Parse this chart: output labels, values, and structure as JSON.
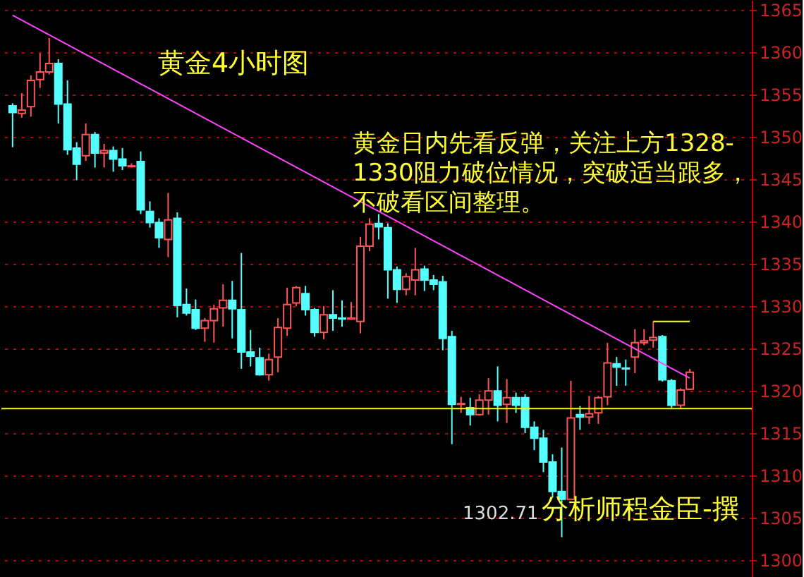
{
  "chart_data": {
    "type": "candlestick",
    "categories": [
      null,
      null,
      null,
      null,
      null,
      null,
      null,
      null,
      null,
      null,
      null,
      null,
      null,
      null,
      null,
      null,
      null,
      null,
      null,
      null,
      null,
      null,
      null,
      null,
      null,
      null,
      null,
      null,
      null,
      null,
      null,
      null,
      null,
      null,
      null,
      null,
      null,
      null,
      null,
      null,
      null,
      null,
      null,
      null,
      null,
      null,
      null,
      null,
      null,
      null,
      null,
      null,
      null,
      null,
      null,
      null,
      null,
      null,
      null,
      null,
      null,
      null,
      null,
      null,
      null,
      null,
      null,
      null,
      null,
      null,
      null,
      null,
      null,
      null,
      null
    ],
    "ohlc": [
      [
        1353.7,
        1354.0,
        1348.8,
        1352.9
      ],
      [
        1352.8,
        1355.2,
        1352.3,
        1353.2
      ],
      [
        1353.6,
        1357.3,
        1352.4,
        1356.7
      ],
      [
        1356.8,
        1359.9,
        1355.8,
        1357.7
      ],
      [
        1357.7,
        1361.7,
        1357.4,
        1358.7
      ],
      [
        1358.7,
        1359.2,
        1351.6,
        1353.9
      ],
      [
        1353.9,
        1356.7,
        1347.9,
        1348.5
      ],
      [
        1348.7,
        1349.4,
        1344.9,
        1346.8
      ],
      [
        1347.8,
        1351.6,
        1347.2,
        1350.3
      ],
      [
        1350.3,
        1350.6,
        1346.4,
        1348.1
      ],
      [
        1348.1,
        1349.2,
        1346.4,
        1348.4
      ],
      [
        1348.4,
        1348.9,
        1345.9,
        1347.4
      ],
      [
        1347.4,
        1348.7,
        1346.1,
        1346.6
      ],
      [
        1346.5,
        1346.9,
        1346.4,
        1346.6
      ],
      [
        1347.1,
        1348.3,
        1340.9,
        1341.4
      ],
      [
        1341.2,
        1342.4,
        1339.3,
        1339.9
      ],
      [
        1339.9,
        1340.4,
        1336.9,
        1338.1
      ],
      [
        1337.9,
        1343.4,
        1335.8,
        1340.2
      ],
      [
        1340.4,
        1341.1,
        1328.7,
        1330.1
      ],
      [
        1330.2,
        1332.1,
        1328.9,
        1329.2
      ],
      [
        1329.6,
        1330.8,
        1327.2,
        1327.4
      ],
      [
        1327.4,
        1328.6,
        1325.8,
        1328.3
      ],
      [
        1328.3,
        1330.2,
        1325.7,
        1329.7
      ],
      [
        1329.8,
        1332.6,
        1327.6,
        1330.7
      ],
      [
        1330.7,
        1333.0,
        1326.2,
        1329.7
      ],
      [
        1329.6,
        1336.3,
        1322.6,
        1324.6
      ],
      [
        1324.6,
        1327.2,
        1322.9,
        1324.1
      ],
      [
        1323.9,
        1325.1,
        1321.8,
        1321.9
      ],
      [
        1321.9,
        1324.4,
        1321.2,
        1323.7
      ],
      [
        1324.0,
        1328.6,
        1322.2,
        1327.5
      ],
      [
        1327.4,
        1332.2,
        1326.5,
        1330.2
      ],
      [
        1330.4,
        1332.4,
        1330.0,
        1332.2
      ],
      [
        1331.5,
        1332.4,
        1328.9,
        1329.6
      ],
      [
        1329.6,
        1329.8,
        1326.4,
        1326.9
      ],
      [
        1326.9,
        1330.0,
        1326.1,
        1329.0
      ],
      [
        1329.0,
        1331.9,
        1327.1,
        1328.6
      ],
      [
        1328.6,
        1330.7,
        1327.6,
        1328.5
      ],
      [
        1328.5,
        1330.5,
        1328.4,
        1328.6
      ],
      [
        1328.2,
        1338.2,
        1326.8,
        1337.1
      ],
      [
        1337.1,
        1340.4,
        1336.5,
        1339.7
      ],
      [
        1339.8,
        1340.9,
        1337.9,
        1339.4
      ],
      [
        1339.3,
        1339.8,
        1330.9,
        1334.3
      ],
      [
        1334.3,
        1334.7,
        1330.4,
        1332.0
      ],
      [
        1332.0,
        1333.9,
        1331.3,
        1333.5
      ],
      [
        1333.1,
        1336.9,
        1331.3,
        1334.3
      ],
      [
        1334.4,
        1334.8,
        1331.8,
        1333.1
      ],
      [
        1333.1,
        1333.7,
        1331.9,
        1332.6
      ],
      [
        1332.9,
        1333.6,
        1324.8,
        1326.2
      ],
      [
        1326.4,
        1327.1,
        1313.7,
        1318.4
      ],
      [
        1318.4,
        1319.3,
        1317.4,
        1318.5
      ],
      [
        1318.0,
        1319.2,
        1315.9,
        1317.2
      ],
      [
        1317.2,
        1319.6,
        1317.1,
        1318.9
      ],
      [
        1318.9,
        1321.5,
        1317.2,
        1320.0
      ],
      [
        1320.0,
        1322.9,
        1316.4,
        1318.3
      ],
      [
        1318.4,
        1321.4,
        1316.2,
        1319.2
      ],
      [
        1319.2,
        1319.8,
        1317.4,
        1318.3
      ],
      [
        1319.2,
        1319.6,
        1315.0,
        1315.7
      ],
      [
        1315.7,
        1316.4,
        1313.0,
        1314.4
      ],
      [
        1314.4,
        1315.4,
        1310.4,
        1311.6
      ],
      [
        1311.6,
        1312.5,
        1307.4,
        1308.1
      ],
      [
        1308.1,
        1313.3,
        1302.71,
        1307.2
      ],
      [
        1307.2,
        1321.2,
        1307.2,
        1316.8
      ],
      [
        1317.2,
        1318.2,
        1315.4,
        1316.9
      ],
      [
        1316.9,
        1319.4,
        1316.1,
        1317.3
      ],
      [
        1317.4,
        1319.4,
        1316.1,
        1319.2
      ],
      [
        1319.3,
        1325.7,
        1318.3,
        1323.3
      ],
      [
        1323.2,
        1324.0,
        1320.6,
        1322.8
      ],
      [
        1322.7,
        1323.7,
        1320.6,
        1322.6
      ],
      [
        1324.0,
        1327.3,
        1322.1,
        1325.7
      ],
      [
        1325.7,
        1327.3,
        1325.4,
        1325.9
      ],
      [
        1326.0,
        1328.2,
        1325.1,
        1326.3
      ],
      [
        1326.4,
        1326.6,
        1321.1,
        1321.3
      ],
      [
        1321.2,
        1321.4,
        1318.0,
        1318.3
      ],
      [
        1318.3,
        1320.3,
        1317.9,
        1320.1
      ],
      [
        1320.2,
        1322.6,
        1320.1,
        1322.2
      ]
    ],
    "colors": [
      "#55ffff",
      "#ff5555",
      "#ff5555",
      "#ff5555",
      "#ff5555",
      "#55ffff",
      "#55ffff",
      "#55ffff",
      "#ff5555",
      "#55ffff",
      "#ff5555",
      "#55ffff",
      "#55ffff",
      "#ff5555",
      "#55ffff",
      "#55ffff",
      "#55ffff",
      "#ff5555",
      "#55ffff",
      "#55ffff",
      "#55ffff",
      "#ff5555",
      "#ff5555",
      "#ff5555",
      "#55ffff",
      "#55ffff",
      "#55ffff",
      "#55ffff",
      "#ff5555",
      "#ff5555",
      "#ff5555",
      "#ff5555",
      "#55ffff",
      "#55ffff",
      "#ff5555",
      "#55ffff",
      "#55ffff",
      "#ff5555",
      "#ff5555",
      "#ff5555",
      "#55ffff",
      "#55ffff",
      "#55ffff",
      "#ff5555",
      "#ff5555",
      "#55ffff",
      "#55ffff",
      "#55ffff",
      "#55ffff",
      "#ff5555",
      "#55ffff",
      "#ff5555",
      "#ff5555",
      "#55ffff",
      "#ff5555",
      "#55ffff",
      "#55ffff",
      "#55ffff",
      "#55ffff",
      "#55ffff",
      "#55ffff",
      "#ff5555",
      "#55ffff",
      "#ff5555",
      "#ff5555",
      "#ff5555",
      "#55ffff",
      "#55ffff",
      "#ff5555",
      "#ff5555",
      "#ff5555",
      "#55ffff",
      "#55ffff",
      "#ff5555",
      "#ff5555"
    ],
    "series": [
      {
        "type": "line",
        "color": "#ff44ff",
        "values": [
          1364.4,
          null,
          null,
          null,
          null,
          null,
          null,
          null,
          null,
          null,
          null,
          null,
          null,
          null,
          null,
          null,
          null,
          null,
          null,
          null,
          null,
          null,
          null,
          null,
          null,
          null,
          null,
          null,
          null,
          null,
          null,
          null,
          null,
          null,
          null,
          null,
          null,
          null,
          null,
          null,
          null,
          null,
          null,
          null,
          null,
          null,
          null,
          null,
          null,
          null,
          null,
          null,
          null,
          null,
          null,
          null,
          null,
          null,
          null,
          null,
          null,
          null,
          null,
          null,
          null,
          null,
          null,
          null,
          null,
          null,
          null,
          null,
          null,
          null,
          1321.5
        ]
      },
      {
        "type": "line",
        "color": "#ffff00",
        "values": [
          null,
          null,
          null,
          null,
          null,
          null,
          null,
          null,
          null,
          null,
          null,
          null,
          null,
          null,
          null,
          null,
          null,
          null,
          null,
          null,
          null,
          null,
          null,
          null,
          null,
          null,
          null,
          null,
          null,
          null,
          null,
          null,
          null,
          null,
          null,
          null,
          null,
          null,
          null,
          null,
          null,
          null,
          null,
          null,
          null,
          null,
          null,
          null,
          null,
          null,
          null,
          null,
          null,
          null,
          null,
          null,
          null,
          null,
          null,
          null,
          null,
          null,
          null,
          null,
          null,
          null,
          null,
          null,
          null,
          null,
          1328.2,
          1328.2,
          1328.2,
          1328.2,
          1328.2
        ]
      }
    ],
    "ref_lines": [
      {
        "axis": "y",
        "value": 1317.9,
        "color": "#ffff00"
      }
    ],
    "ylim": [
      1298,
      1366.2
    ],
    "yticks": [
      1300,
      1305,
      1310,
      1315,
      1320,
      1325,
      1330,
      1335,
      1340,
      1345,
      1350,
      1355,
      1360,
      1365
    ],
    "grid": "y",
    "tick_labels": "y",
    "annotations": [
      "黄金4小时图",
      "黄金日内先看反弹，关注上方1328-1330阻力破位情况，突破适当跟多，不破看区间整理。",
      "1302.71",
      "分析师程金臣-撰"
    ]
  }
}
